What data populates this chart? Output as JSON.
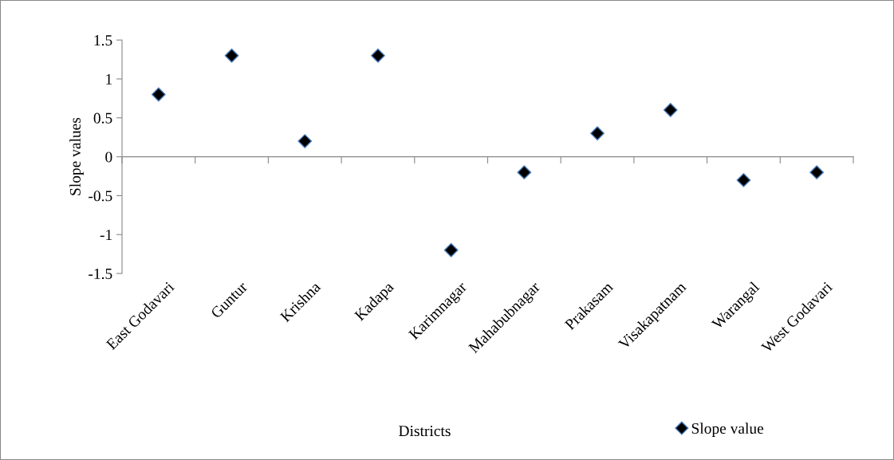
{
  "chart_data": {
    "type": "scatter",
    "xlabel": "Districts",
    "ylabel": "Slope values",
    "categories": [
      "East Godavari",
      "Guntur",
      "Krishna",
      "Kadapa",
      "Karimnagar",
      "Mahabubnagar",
      "Prakasam",
      "Visakapatnam",
      "Warangal",
      "West Godavari"
    ],
    "series": [
      {
        "name": "Slope value",
        "color": "#000000",
        "values": [
          0.8,
          1.3,
          0.2,
          1.3,
          -1.2,
          -0.2,
          0.3,
          0.6,
          -0.3,
          -0.2
        ]
      }
    ],
    "ylim": [
      -1.5,
      1.5
    ],
    "yticks": [
      -1.5,
      -1,
      -0.5,
      0,
      0.5,
      1,
      1.5
    ],
    "marker": "diamond",
    "legend": "bottom right"
  }
}
